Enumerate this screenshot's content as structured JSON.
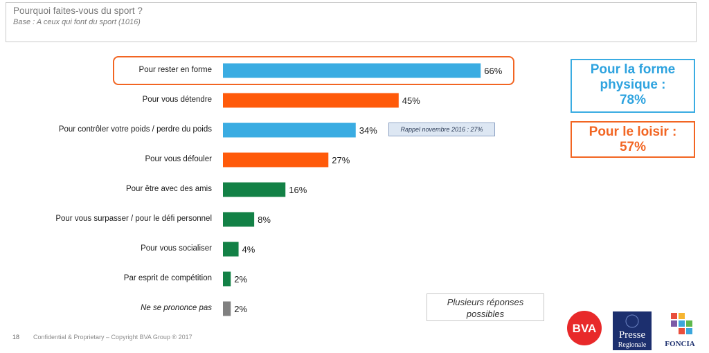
{
  "header": {
    "title": "Pourquoi faites-vous du sport ?",
    "subtitle": "Base : A ceux qui font du sport (1016)"
  },
  "chart_data": {
    "type": "bar",
    "orientation": "horizontal",
    "categories": [
      "Pour rester en forme",
      "Pour vous détendre",
      "Pour contrôler votre poids / perdre du poids",
      "Pour vous défouler",
      "Pour être avec des amis",
      "Pour vous surpasser / pour le défi personnel",
      "Pour vous socialiser",
      "Par esprit de compétition",
      "Ne se prononce pas"
    ],
    "values": [
      66,
      45,
      34,
      27,
      16,
      8,
      4,
      2,
      2
    ],
    "value_labels": [
      "66%",
      "45%",
      "34%",
      "27%",
      "16%",
      "8%",
      "4%",
      "2%",
      "2%"
    ],
    "bar_colors": [
      "#3aace2",
      "#ff5a0a",
      "#3aace2",
      "#ff5a0a",
      "#138146",
      "#138146",
      "#138146",
      "#138146",
      "#808080"
    ],
    "unit": "%",
    "annotation": "Rappel novembre 2016 : 27%"
  },
  "kpis": {
    "forme": {
      "line1": "Pour la forme",
      "line2": "physique :",
      "line3": "78%",
      "color": "#2ea3df"
    },
    "loisir": {
      "line1": "Pour le loisir :",
      "line2": "57%",
      "color": "#f26522"
    }
  },
  "note": {
    "line1": "Plusieurs réponses",
    "line2": "possibles"
  },
  "footer": {
    "page_number": "18",
    "copyright": "Confidential & Proprietary – Copyright BVA Group ® 2017"
  },
  "logos": {
    "bva": "BVA",
    "presse_line1": "Presse",
    "presse_line2": "Regionale",
    "foncia": "FONCIA"
  }
}
